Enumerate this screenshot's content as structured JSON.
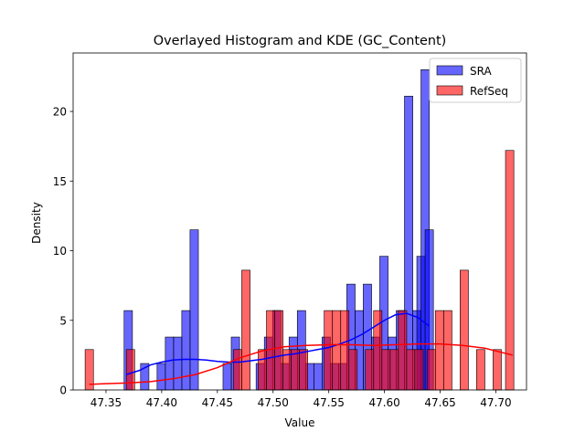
{
  "chart_data": {
    "type": "bar",
    "title": "Overlayed Histogram and KDE (GC_Content)",
    "xlabel": "Value",
    "ylabel": "Density",
    "xlim": [
      47.3205,
      47.7275
    ],
    "ylim": [
      0,
      24.2
    ],
    "xticks": [
      47.35,
      47.4,
      47.45,
      47.5,
      47.55,
      47.6,
      47.65,
      47.7
    ],
    "yticks": [
      0,
      5,
      10,
      15,
      20
    ],
    "legend_position": "top-right",
    "bin_width": 0.0075,
    "grid": false,
    "series": [
      {
        "name": "SRA",
        "color": "#0000ff",
        "opacity": 0.6,
        "bars": [
          {
            "x": 47.37,
            "h": 5.7
          },
          {
            "x": 47.3848,
            "h": 1.9
          },
          {
            "x": 47.3996,
            "h": 1.9
          },
          {
            "x": 47.407,
            "h": 3.8
          },
          {
            "x": 47.4144,
            "h": 3.8
          },
          {
            "x": 47.4218,
            "h": 5.7
          },
          {
            "x": 47.4292,
            "h": 11.5
          },
          {
            "x": 47.4588,
            "h": 1.9
          },
          {
            "x": 47.4662,
            "h": 3.8
          },
          {
            "x": 47.4885,
            "h": 1.9
          },
          {
            "x": 47.4959,
            "h": 3.8
          },
          {
            "x": 47.5033,
            "h": 5.7
          },
          {
            "x": 47.5107,
            "h": 1.9
          },
          {
            "x": 47.5181,
            "h": 3.8
          },
          {
            "x": 47.5255,
            "h": 5.7
          },
          {
            "x": 47.5329,
            "h": 1.9
          },
          {
            "x": 47.5403,
            "h": 1.9
          },
          {
            "x": 47.5477,
            "h": 3.8
          },
          {
            "x": 47.5551,
            "h": 1.9
          },
          {
            "x": 47.5625,
            "h": 1.9
          },
          {
            "x": 47.5699,
            "h": 7.6
          },
          {
            "x": 47.5773,
            "h": 5.7
          },
          {
            "x": 47.5847,
            "h": 7.6
          },
          {
            "x": 47.5921,
            "h": 3.8
          },
          {
            "x": 47.5995,
            "h": 9.6
          },
          {
            "x": 47.6069,
            "h": 3.8
          },
          {
            "x": 47.6143,
            "h": 5.7
          },
          {
            "x": 47.6217,
            "h": 21.1
          },
          {
            "x": 47.6291,
            "h": 5.7
          },
          {
            "x": 47.6328,
            "h": 9.6
          },
          {
            "x": 47.6365,
            "h": 23.0
          },
          {
            "x": 47.6402,
            "h": 11.5
          }
        ],
        "kde": {
          "x": [
            47.368,
            47.38,
            47.39,
            47.4,
            47.41,
            47.42,
            47.43,
            47.44,
            47.45,
            47.46,
            47.47,
            47.48,
            47.49,
            47.5,
            47.51,
            47.52,
            47.53,
            47.54,
            47.55,
            47.56,
            47.57,
            47.58,
            47.59,
            47.6,
            47.61,
            47.62,
            47.63,
            47.64
          ],
          "y": [
            1.1,
            1.4,
            1.8,
            2.0,
            2.15,
            2.2,
            2.2,
            2.15,
            2.05,
            2.0,
            2.0,
            2.1,
            2.2,
            2.35,
            2.5,
            2.6,
            2.75,
            2.9,
            3.05,
            3.3,
            3.6,
            4.0,
            4.5,
            5.0,
            5.4,
            5.5,
            5.2,
            4.6
          ]
        }
      },
      {
        "name": "RefSeq",
        "color": "#ff0000",
        "opacity": 0.6,
        "bars": [
          {
            "x": 47.335,
            "h": 2.9
          },
          {
            "x": 47.372,
            "h": 2.9
          },
          {
            "x": 47.4682,
            "h": 2.9
          },
          {
            "x": 47.4756,
            "h": 8.6
          },
          {
            "x": 47.4904,
            "h": 2.9
          },
          {
            "x": 47.4978,
            "h": 5.7
          },
          {
            "x": 47.5052,
            "h": 5.7
          },
          {
            "x": 47.5126,
            "h": 2.9
          },
          {
            "x": 47.52,
            "h": 2.9
          },
          {
            "x": 47.5274,
            "h": 2.9
          },
          {
            "x": 47.5496,
            "h": 5.7
          },
          {
            "x": 47.557,
            "h": 5.7
          },
          {
            "x": 47.5644,
            "h": 5.7
          },
          {
            "x": 47.5718,
            "h": 2.9
          },
          {
            "x": 47.5866,
            "h": 2.9
          },
          {
            "x": 47.594,
            "h": 5.7
          },
          {
            "x": 47.6014,
            "h": 2.9
          },
          {
            "x": 47.6088,
            "h": 2.9
          },
          {
            "x": 47.6162,
            "h": 5.7
          },
          {
            "x": 47.6236,
            "h": 2.9
          },
          {
            "x": 47.631,
            "h": 2.9
          },
          {
            "x": 47.642,
            "h": 2.9
          },
          {
            "x": 47.6494,
            "h": 5.7
          },
          {
            "x": 47.6568,
            "h": 5.7
          },
          {
            "x": 47.6716,
            "h": 8.6
          },
          {
            "x": 47.6864,
            "h": 2.9
          },
          {
            "x": 47.7012,
            "h": 2.9
          },
          {
            "x": 47.7124,
            "h": 17.2
          }
        ],
        "kde": {
          "x": [
            47.335,
            47.35,
            47.37,
            47.39,
            47.41,
            47.43,
            47.45,
            47.47,
            47.49,
            47.51,
            47.53,
            47.55,
            47.57,
            47.59,
            47.61,
            47.63,
            47.65,
            47.67,
            47.69,
            47.7,
            47.715
          ],
          "y": [
            0.4,
            0.45,
            0.5,
            0.6,
            0.8,
            1.1,
            1.6,
            2.3,
            2.8,
            3.1,
            3.2,
            3.25,
            3.25,
            3.2,
            3.25,
            3.3,
            3.3,
            3.2,
            3.0,
            2.8,
            2.5
          ]
        }
      }
    ]
  }
}
